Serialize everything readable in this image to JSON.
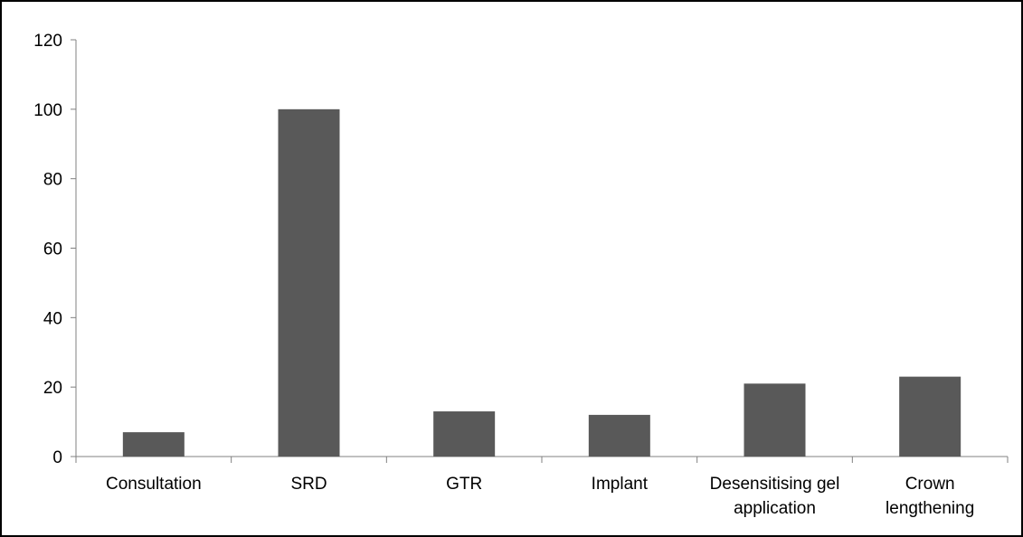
{
  "chart_data": {
    "type": "bar",
    "title": "",
    "xlabel": "",
    "ylabel": "",
    "ylim": [
      0,
      120
    ],
    "y_ticks": [
      0,
      20,
      40,
      60,
      80,
      100,
      120
    ],
    "grid": false,
    "legend": "none",
    "categories": [
      [
        "Consultation"
      ],
      [
        "SRD"
      ],
      [
        "GTR"
      ],
      [
        "Implant"
      ],
      [
        "Desensitising gel",
        "application"
      ],
      [
        "Crown",
        "lengthening"
      ]
    ],
    "values": [
      7,
      100,
      13,
      12,
      21,
      23
    ],
    "colors": {
      "bar": "#595959",
      "axis": "#808080",
      "text": "#000000"
    }
  }
}
